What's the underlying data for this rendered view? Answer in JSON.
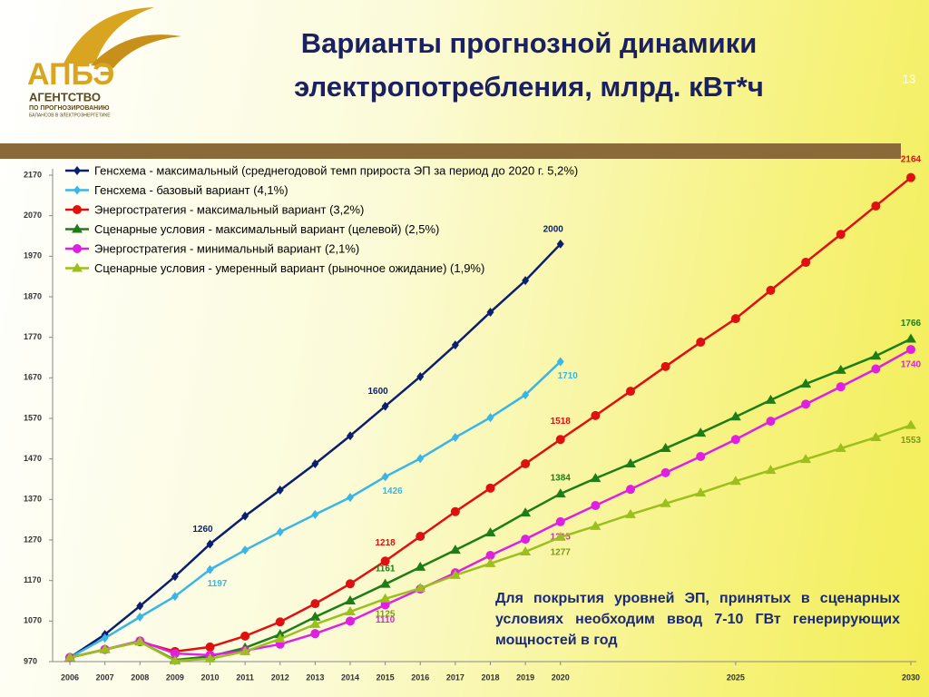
{
  "header": {
    "title_line1": "Варианты прогнозной динамики",
    "title_line2": "электропотребления, млрд. кВт*ч",
    "slide_number": "13"
  },
  "logo": {
    "abbr": "АПБЭ",
    "line1": "АГЕНТСТВО",
    "line2": "ПО ПРОГНОЗИРОВАНИЮ",
    "line3": "БАЛАНСОВ В ЭЛЕКТРОЭНЕРГЕТИКЕ"
  },
  "note": "Для покрытия уровней ЭП, принятых в сценарных условиях необходим ввод 7-10 ГВт генерирующих мощностей в год",
  "chart_data": {
    "type": "line",
    "x": [
      2006,
      2007,
      2008,
      2009,
      2010,
      2011,
      2012,
      2013,
      2014,
      2015,
      2016,
      2017,
      2018,
      2019,
      2020,
      2021,
      2022,
      2023,
      2024,
      2025,
      2026,
      2027,
      2028,
      2029,
      2030
    ],
    "xlim": [
      2006,
      2030
    ],
    "xticks": [
      2006,
      2007,
      2008,
      2009,
      2010,
      2011,
      2012,
      2013,
      2014,
      2015,
      2016,
      2017,
      2018,
      2019,
      2020,
      2025,
      2030
    ],
    "ylim": [
      970,
      2170
    ],
    "yticks": [
      970,
      1070,
      1170,
      1270,
      1370,
      1470,
      1570,
      1670,
      1770,
      1870,
      1970,
      2070,
      2170
    ],
    "legend": "top-left",
    "series": [
      {
        "name": "Генсхема - максимальный (среднегодовой темп прироста ЭП за период до 2020 г. 5,2%)",
        "color": "#0a1f6e",
        "marker": "diamond",
        "label_years": [
          2010,
          2015,
          2020
        ],
        "values": [
          980,
          1037,
          1107,
          1180,
          1260,
          1329,
          1393,
          1458,
          1527,
          1600,
          1673,
          1751,
          1832,
          1910,
          2000,
          null,
          null,
          null,
          null,
          null,
          null,
          null,
          null,
          null,
          null
        ]
      },
      {
        "name": "Генсхема - базовый вариант (4,1%)",
        "color": "#3ab6e6",
        "marker": "diamond",
        "label_years": [
          2010,
          2015,
          2020
        ],
        "values": [
          980,
          1028,
          1080,
          1131,
          1197,
          1245,
          1290,
          1333,
          1375,
          1426,
          1471,
          1523,
          1572,
          1628,
          1710,
          null,
          null,
          null,
          null,
          null,
          null,
          null,
          null,
          null,
          null
        ]
      },
      {
        "name": "Энергостратегия - максимальный вариант (3,2%)",
        "color": "#e01010",
        "marker": "circle",
        "label_years": [
          2015,
          2020,
          2030
        ],
        "values": [
          980,
          1000,
          1019,
          995,
          1006,
          1033,
          1068,
          1113,
          1162,
          1218,
          1279,
          1340,
          1398,
          1458,
          1518,
          1577,
          1637,
          1698,
          1758,
          1816,
          1886,
          1955,
          2024,
          2094,
          2164
        ]
      },
      {
        "name": "Сценарные условия - максимальный вариант (целевой) (2,5%)",
        "color": "#1e7d16",
        "marker": "triangle",
        "label_years": [
          2015,
          2020,
          2030
        ],
        "values": [
          980,
          1000,
          1019,
          974,
          983,
          1004,
          1037,
          1080,
          1120,
          1161,
          1203,
          1245,
          1288,
          1337,
          1384,
          1422,
          1458,
          1496,
          1534,
          1574,
          1615,
          1655,
          1689,
          1724,
          1766
        ]
      },
      {
        "name": "Энергостратегия - минимальный вариант (2,1%)",
        "color": "#e020e0",
        "marker": "circle",
        "label_years": [
          2015,
          2020,
          2030
        ],
        "values": [
          980,
          1000,
          1021,
          990,
          986,
          997,
          1013,
          1039,
          1070,
          1110,
          1149,
          1189,
          1232,
          1272,
          1315,
          1355,
          1395,
          1436,
          1476,
          1518,
          1563,
          1605,
          1648,
          1692,
          1740
        ]
      },
      {
        "name": "Сценарные условия - умеренный вариант (рыночное ожидание) (1,9%)",
        "color": "#9cbf1e",
        "marker": "triangle",
        "label_years": [
          2015,
          2020,
          2030
        ],
        "values": [
          980,
          1000,
          1019,
          972,
          977,
          995,
          1026,
          1062,
          1093,
          1125,
          1151,
          1183,
          1212,
          1241,
          1277,
          1304,
          1333,
          1360,
          1386,
          1415,
          1442,
          1469,
          1496,
          1523,
          1553
        ]
      }
    ]
  }
}
